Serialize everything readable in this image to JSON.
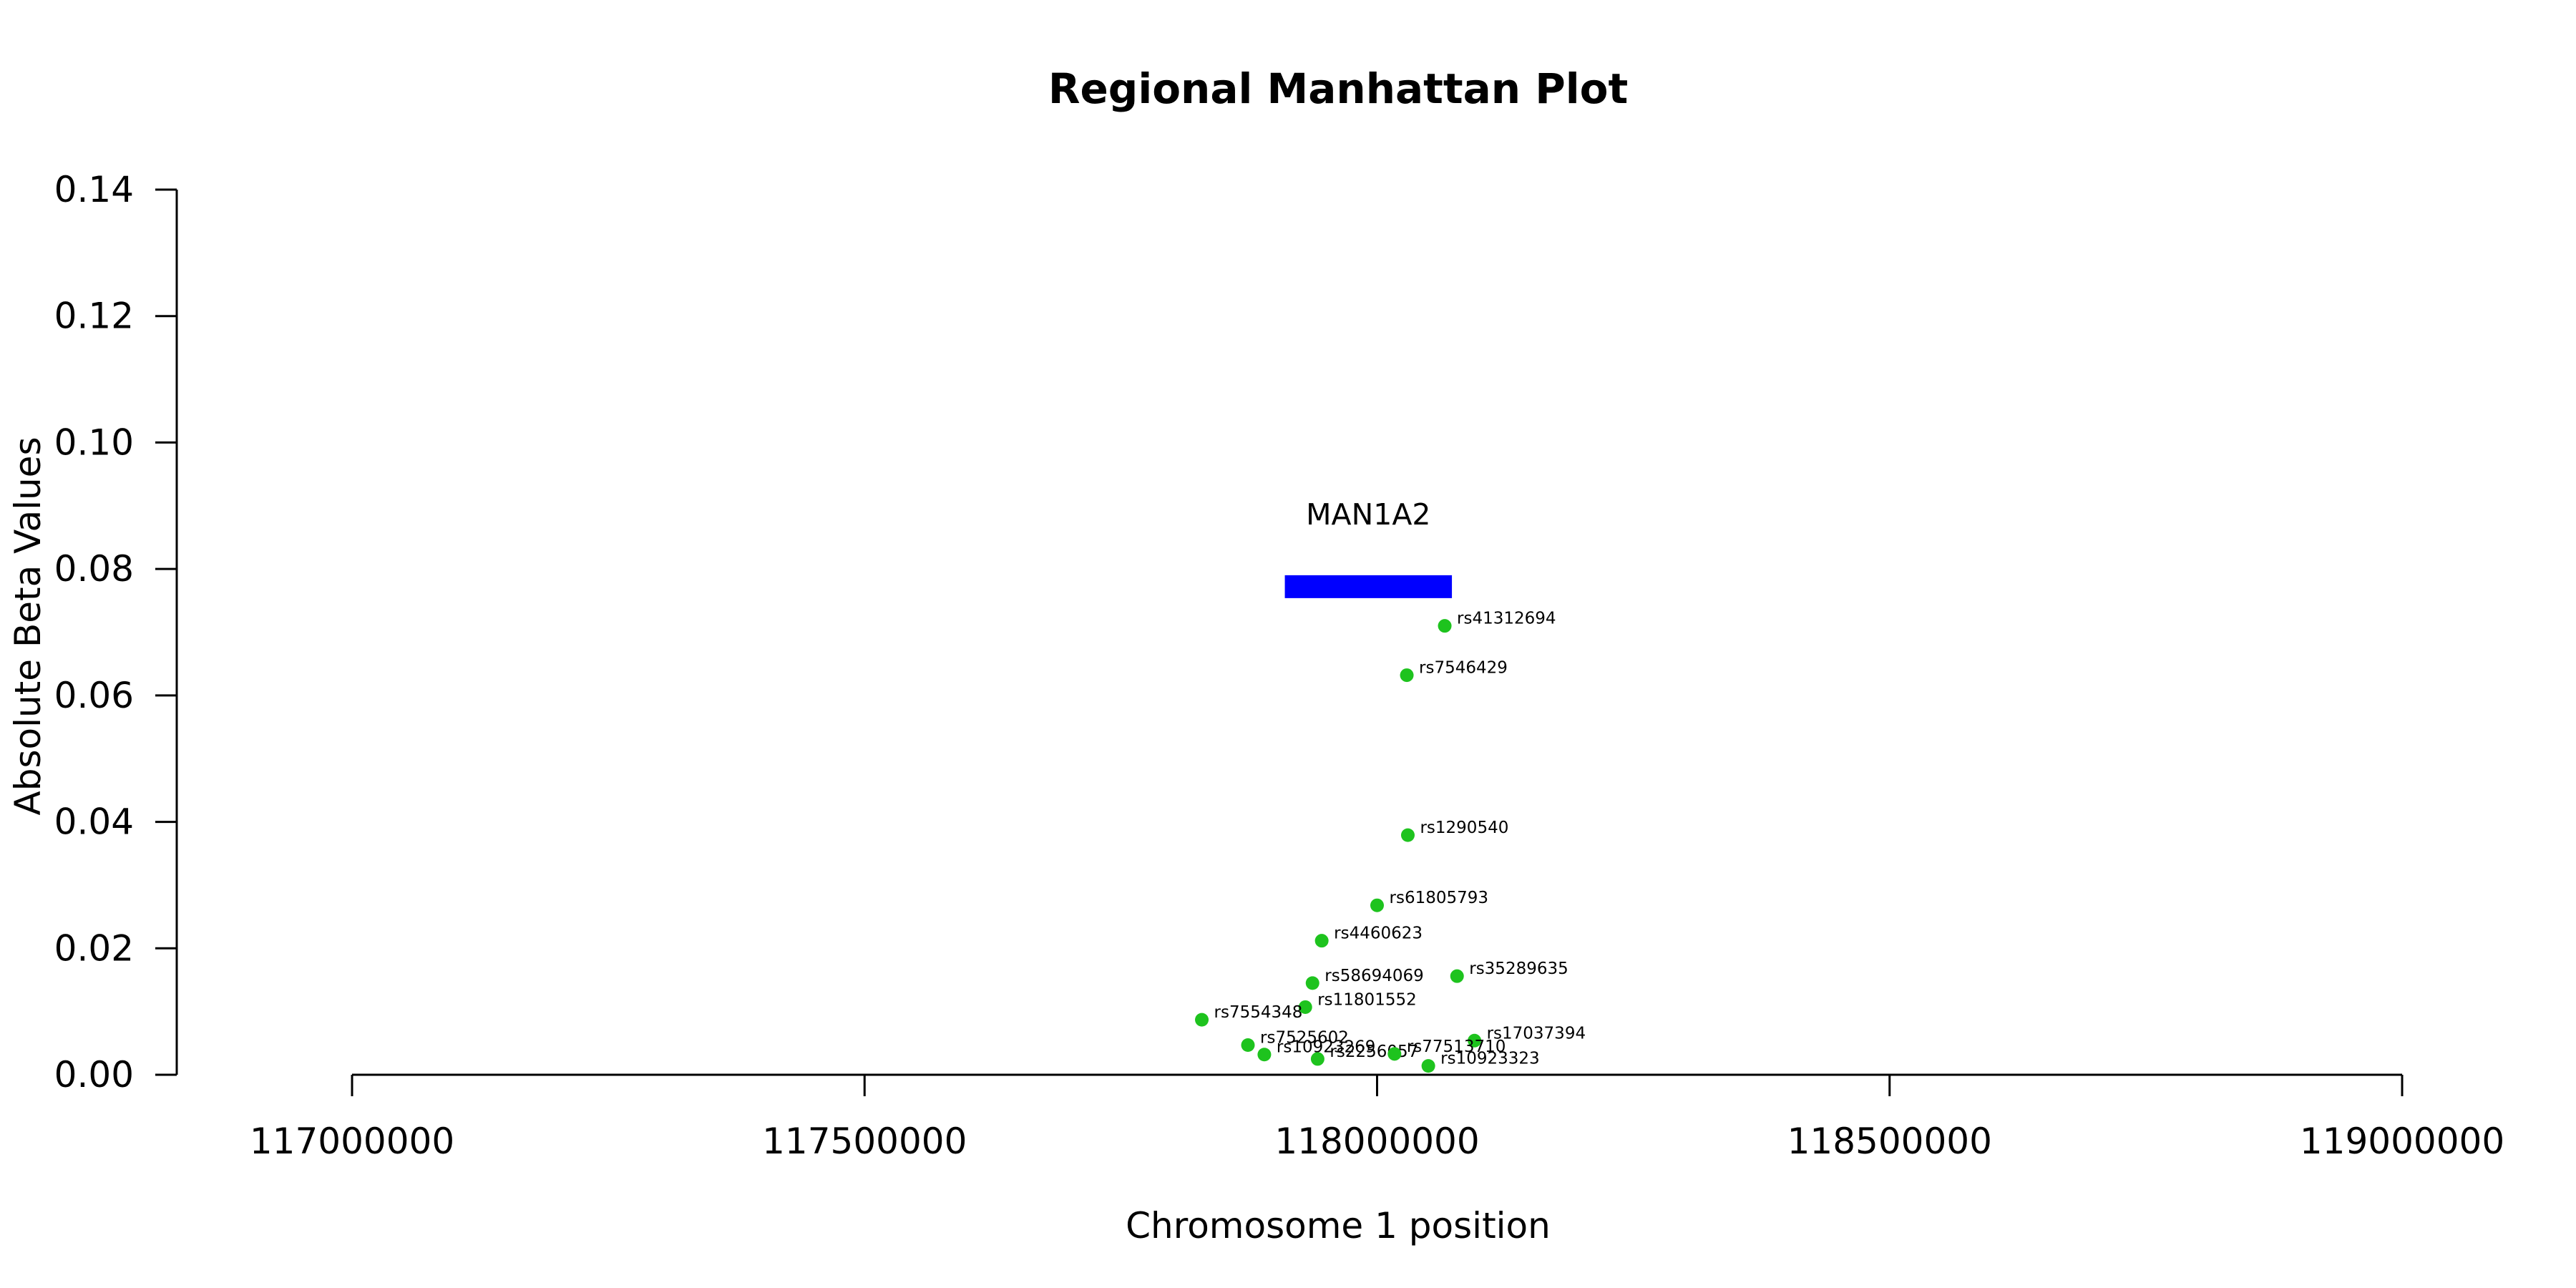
{
  "chart_data": {
    "type": "scatter",
    "title": "Regional Manhattan Plot",
    "xlabel": "Chromosome 1 position",
    "ylabel": "Absolute Beta Values",
    "xlim": [
      117000000,
      119000000
    ],
    "ylim": [
      0,
      0.14
    ],
    "x_ticks": [
      117000000,
      117500000,
      118000000,
      118500000,
      119000000
    ],
    "x_tick_labels": [
      "117000000",
      "117500000",
      "118000000",
      "118500000",
      "119000000"
    ],
    "y_ticks": [
      0,
      0.02,
      0.04,
      0.06,
      0.08,
      0.1,
      0.12,
      0.14
    ],
    "y_tick_labels": [
      "0.00",
      "0.02",
      "0.04",
      "0.06",
      "0.08",
      "0.10",
      "0.12",
      "0.14"
    ],
    "grid": false,
    "point_color": "#1ec31e",
    "gene_color": "#0000ff",
    "genes": [
      {
        "name": "MAN1A2",
        "start": 117910000,
        "end": 118073000,
        "y": 0.0772
      }
    ],
    "points": [
      {
        "label": "rs41312694",
        "x": 118066000,
        "y": 0.071
      },
      {
        "label": "rs7546429",
        "x": 118029000,
        "y": 0.0632
      },
      {
        "label": "rs1290540",
        "x": 118030000,
        "y": 0.0379
      },
      {
        "label": "rs61805793",
        "x": 118000000,
        "y": 0.0268
      },
      {
        "label": "rs4460623",
        "x": 117946000,
        "y": 0.0212
      },
      {
        "label": "rs35289635",
        "x": 118078000,
        "y": 0.0156
      },
      {
        "label": "rs58694069",
        "x": 117937000,
        "y": 0.0145
      },
      {
        "label": "rs11801552",
        "x": 117930000,
        "y": 0.0107
      },
      {
        "label": "rs7554348",
        "x": 117829000,
        "y": 0.0087
      },
      {
        "label": "rs17037394",
        "x": 118095000,
        "y": 0.0054
      },
      {
        "label": "rs7525602",
        "x": 117874000,
        "y": 0.0047
      },
      {
        "label": "rs10923269",
        "x": 117890000,
        "y": 0.0032
      },
      {
        "label": "rs2256057",
        "x": 117942000,
        "y": 0.0025
      },
      {
        "label": "rs77513710",
        "x": 118017000,
        "y": 0.0033
      },
      {
        "label": "rs10923323",
        "x": 118050000,
        "y": 0.0014
      }
    ]
  }
}
